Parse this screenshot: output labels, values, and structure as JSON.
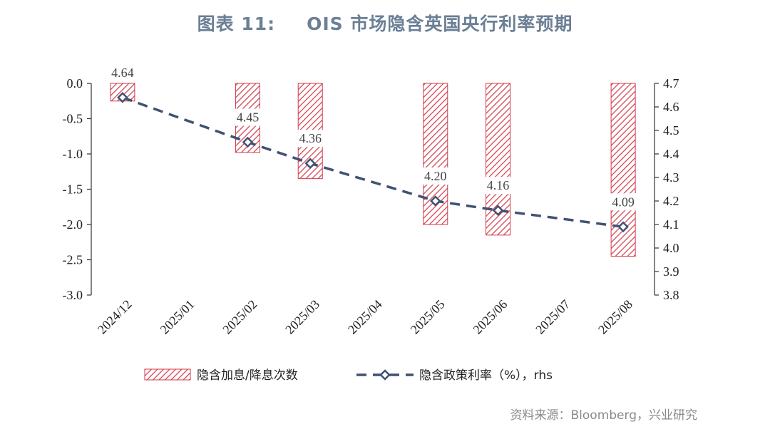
{
  "title": {
    "prefix": "图表 11:",
    "text": "OIS 市场隐含英国央行利率预期"
  },
  "source": "资料来源：Bloomberg，兴业研究",
  "chart_data": {
    "type": "bar",
    "categories": [
      "2024/12",
      "2025/01",
      "2025/02",
      "2025/03",
      "2025/04",
      "2025/05",
      "2025/06",
      "2025/07",
      "2025/08"
    ],
    "series": [
      {
        "name": "隐含加息/降息次数",
        "type": "bar",
        "axis": "left",
        "color": "#d43a4a",
        "values": [
          -0.25,
          null,
          -0.98,
          -1.35,
          null,
          -2.0,
          -2.15,
          null,
          -2.45
        ]
      },
      {
        "name": "隐含政策利率（%），rhs",
        "type": "line",
        "axis": "right",
        "color": "#3f5272",
        "x": [
          "2024/12",
          "2025/02",
          "2025/03",
          "2025/05",
          "2025/06",
          "2025/08"
        ],
        "values": [
          4.64,
          4.45,
          4.36,
          4.2,
          4.16,
          4.09
        ],
        "labels": [
          "4.64",
          "4.45",
          "4.36",
          "4.20",
          "4.16",
          "4.09"
        ]
      }
    ],
    "y_left": {
      "lim": [
        -3.0,
        0.0
      ],
      "ticks": [
        "0.0",
        "-0.5",
        "-1.0",
        "-1.5",
        "-2.0",
        "-2.5",
        "-3.0"
      ]
    },
    "y_right": {
      "lim": [
        3.8,
        4.7
      ],
      "ticks": [
        "4.7",
        "4.6",
        "4.5",
        "4.4",
        "4.3",
        "4.2",
        "4.1",
        "4.0",
        "3.9",
        "3.8"
      ]
    },
    "grid": false,
    "legend_position": "bottom"
  }
}
